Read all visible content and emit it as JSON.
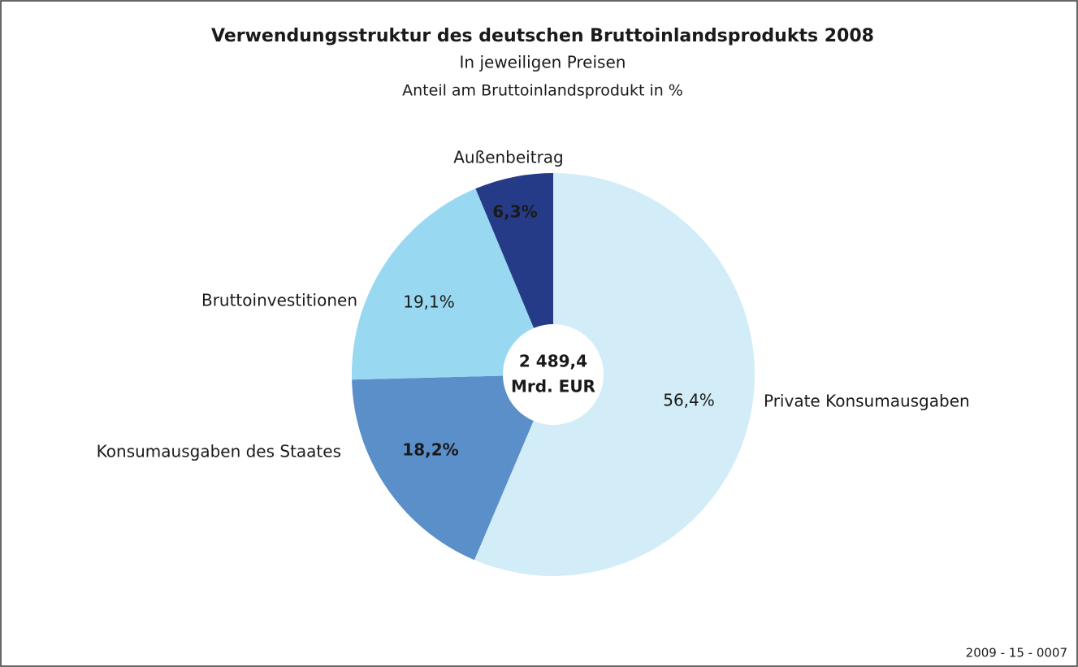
{
  "chart_data": {
    "type": "pie",
    "title": "Verwendungsstruktur des deutschen Bruttoinlandsprodukts 2008",
    "subtitle": "In jeweiligen Preisen",
    "unit_note": "Anteil am Bruttoinlandsprodukt in %",
    "categories": [
      "Private Konsumausgaben",
      "Konsumausgaben des Staates",
      "Bruttoinvestitionen",
      "Außenbeitrag"
    ],
    "values": [
      56.4,
      18.2,
      19.1,
      6.3
    ],
    "value_labels": [
      "56,4%",
      "18,2%",
      "19,1%",
      "6,3%"
    ],
    "colors": [
      "#d2edf8",
      "#5a8fca",
      "#98d8f1",
      "#263b88"
    ],
    "center_label": [
      "2 489,4",
      "Mrd. EUR"
    ],
    "source_code": "2009 - 15 - 0007"
  }
}
